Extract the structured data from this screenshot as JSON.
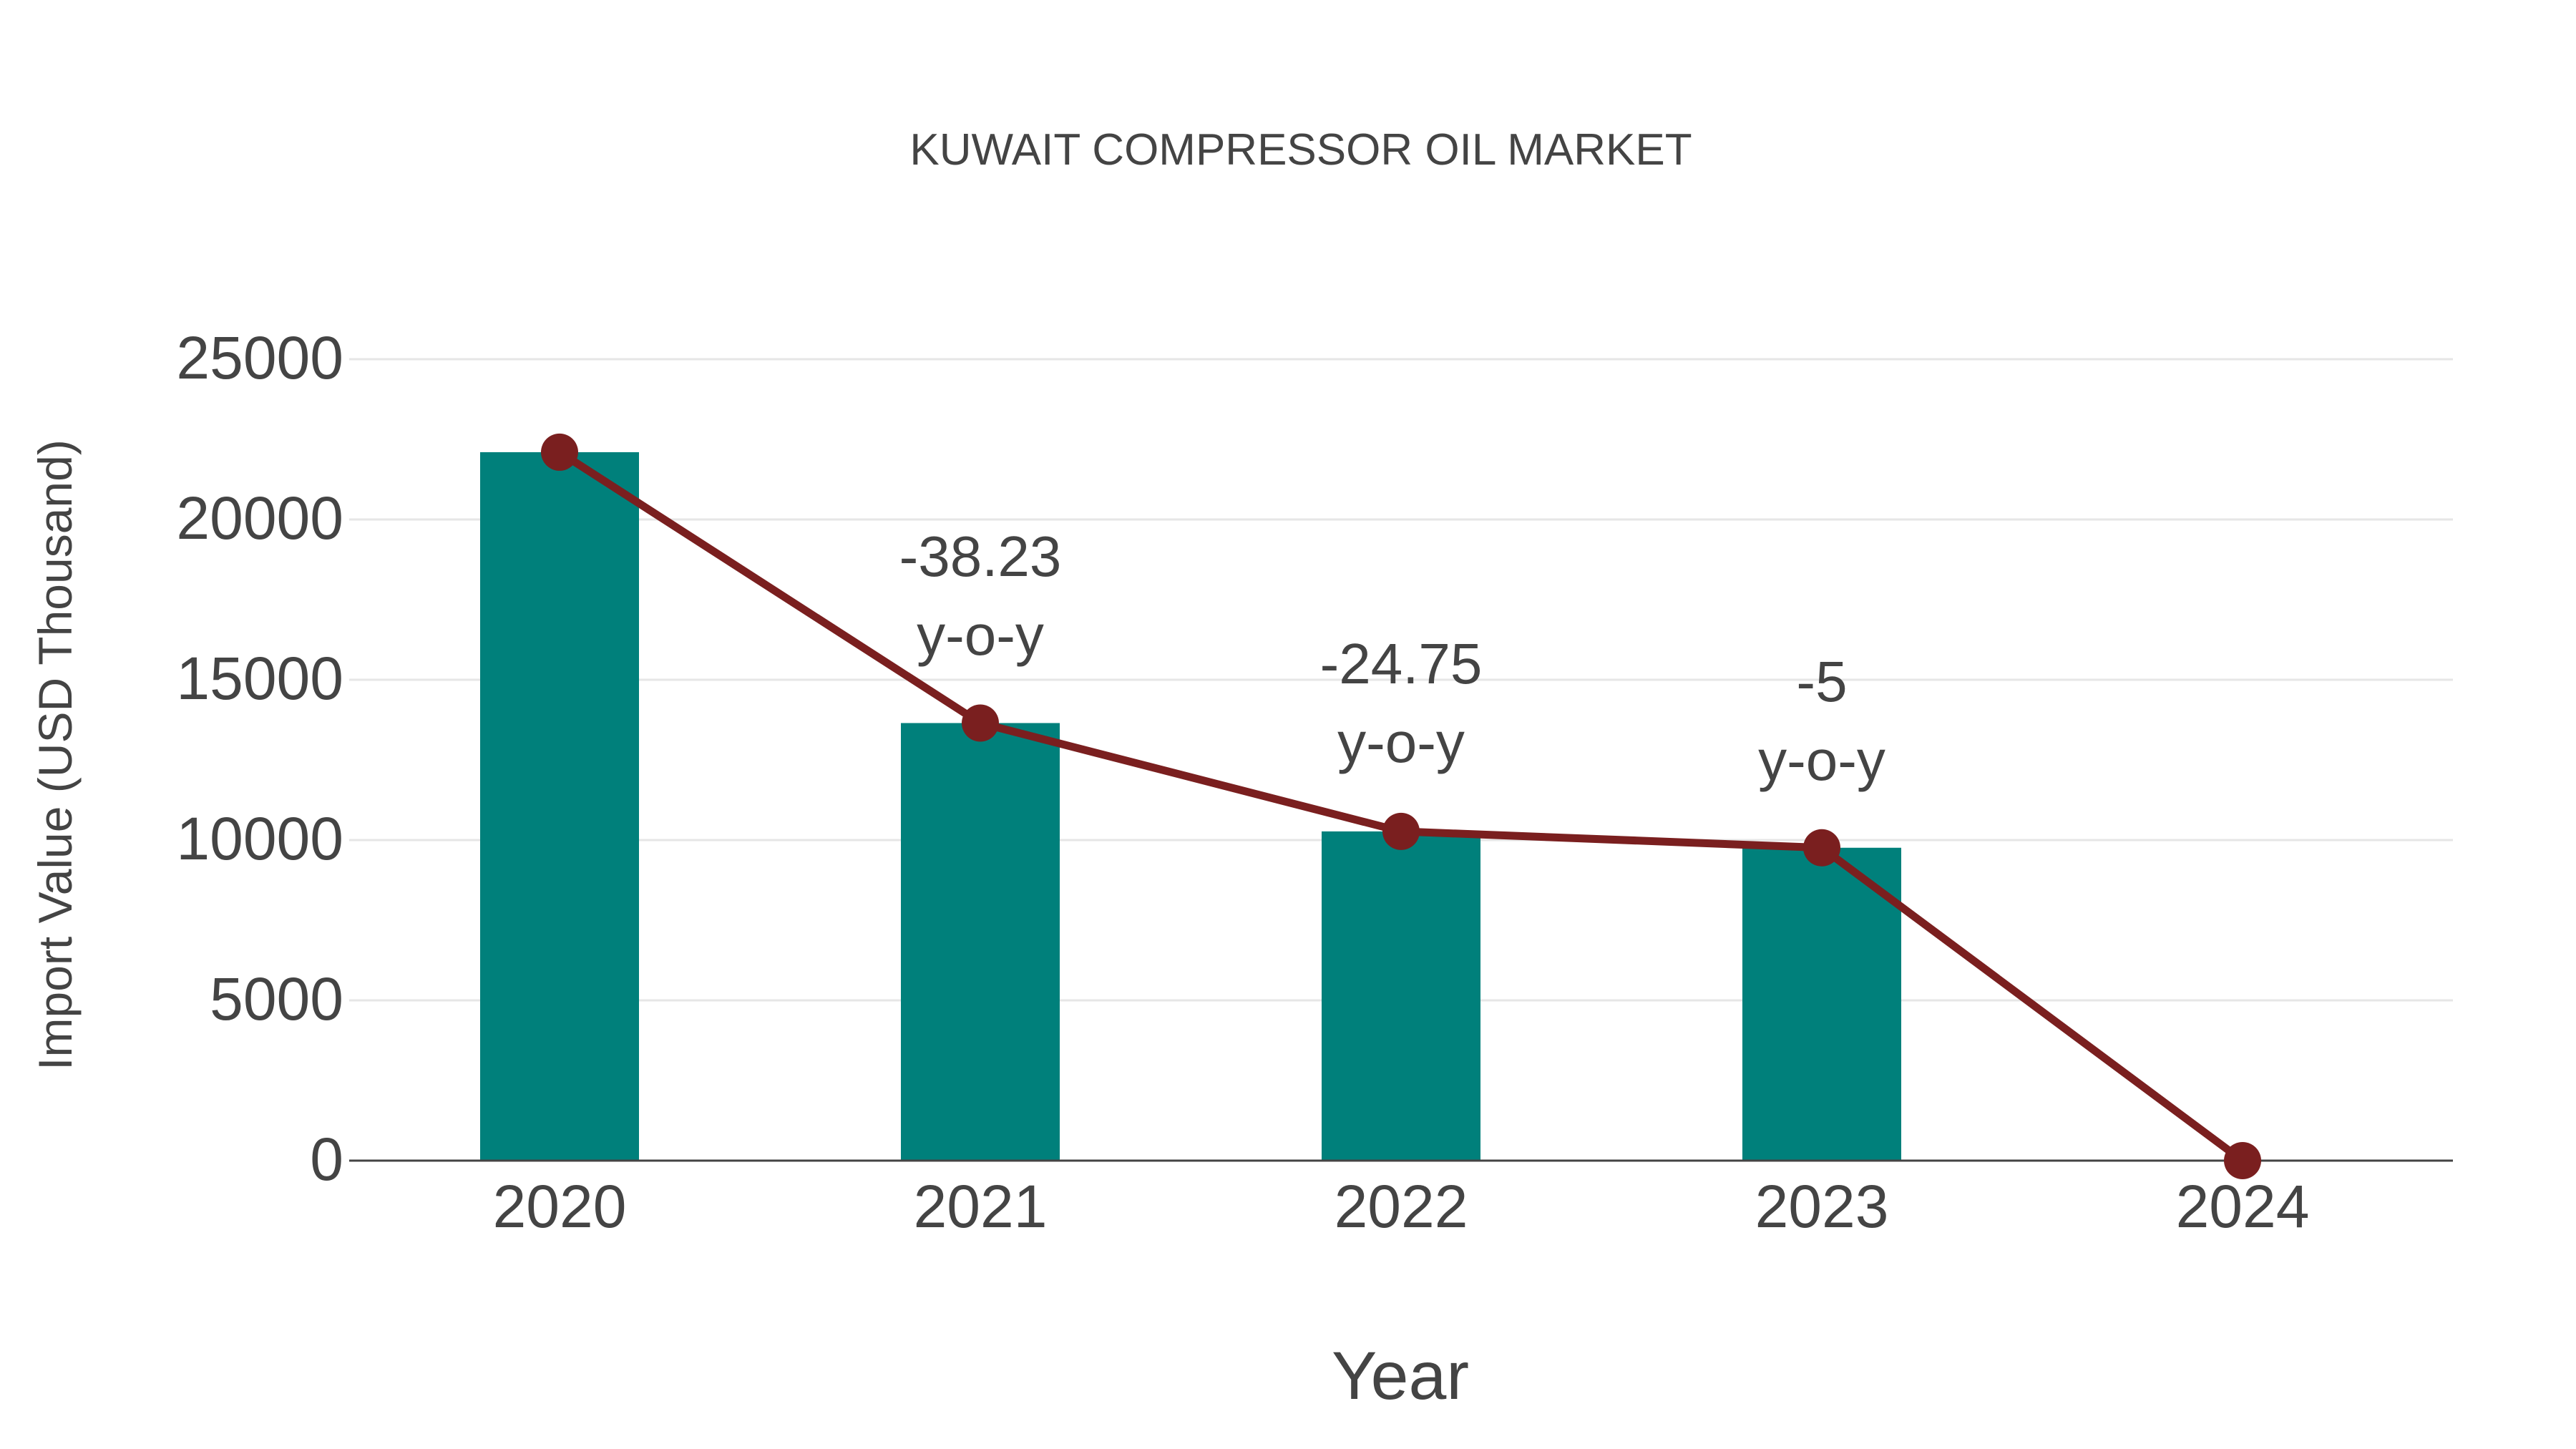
{
  "chart_data": {
    "type": "bar",
    "title": "KUWAIT COMPRESSOR OIL MARKET",
    "xlabel": "Year",
    "ylabel": "Import Value (USD Thousand)",
    "categories": [
      "2020",
      "2021",
      "2022",
      "2023",
      "2024"
    ],
    "series": [
      {
        "name": "Import Value (bar)",
        "type": "bar",
        "color": "#00807b",
        "values": [
          22100,
          13650,
          10270,
          9760,
          0
        ]
      },
      {
        "name": "Import Value (line)",
        "type": "line",
        "color": "#7a1f1f",
        "values": [
          22100,
          13650,
          10270,
          9760,
          0
        ]
      }
    ],
    "annotations": [
      {
        "x": "2021",
        "value": "-38.23",
        "suffix": "y-o-y"
      },
      {
        "x": "2022",
        "value": "-24.75",
        "suffix": "y-o-y"
      },
      {
        "x": "2023",
        "value": "-5",
        "suffix": "y-o-y"
      }
    ],
    "yticks": [
      0,
      5000,
      10000,
      15000,
      20000,
      25000
    ],
    "ylim": [
      0,
      25000
    ],
    "grid": true
  }
}
